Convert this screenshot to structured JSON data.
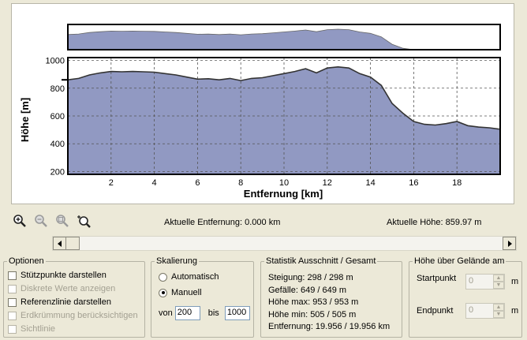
{
  "chart": {
    "ylabel": "Höhe [m]",
    "xlabel": "Entfernung [km]",
    "y_ticks": [
      "1000",
      "800",
      "600",
      "400",
      "200"
    ],
    "x_ticks": [
      "2",
      "4",
      "6",
      "8",
      "10",
      "12",
      "14",
      "16",
      "18"
    ],
    "fill_color": "#9199c2",
    "line_color": "#333333"
  },
  "chart_data": {
    "type": "area",
    "xlabel": "Entfernung [km]",
    "ylabel": "Höhe [m]",
    "xlim": [
      0,
      20
    ],
    "ylim": [
      180,
      1020
    ],
    "grid": true,
    "x": [
      0,
      0.5,
      1,
      1.5,
      2,
      2.5,
      3,
      3.5,
      4,
      4.5,
      5,
      5.5,
      6,
      6.5,
      7,
      7.5,
      8,
      8.5,
      9,
      9.5,
      10,
      10.5,
      11,
      11.5,
      12,
      12.5,
      13,
      13.5,
      14,
      14.5,
      15,
      15.5,
      16,
      16.5,
      17,
      17.5,
      18,
      18.5,
      19,
      19.5,
      19.956
    ],
    "y": [
      860,
      870,
      895,
      910,
      920,
      918,
      920,
      918,
      915,
      905,
      895,
      880,
      865,
      868,
      860,
      870,
      855,
      870,
      875,
      890,
      905,
      920,
      940,
      910,
      945,
      953,
      945,
      905,
      880,
      820,
      690,
      620,
      560,
      540,
      535,
      545,
      560,
      530,
      520,
      515,
      505
    ]
  },
  "zoom_icons": [
    "zoom-in-icon",
    "zoom-out-icon",
    "zoom-fit-icon",
    "zoom-select-icon"
  ],
  "status": {
    "distance": "Aktuelle Entfernung: 0.000 km",
    "height": "Aktuelle Höhe: 859.97 m"
  },
  "optionen": {
    "title": "Optionen",
    "items": [
      {
        "label": "Stützpunkte darstellen",
        "checked": false,
        "enabled": true
      },
      {
        "label": "Diskrete Werte anzeigen",
        "checked": false,
        "enabled": false
      },
      {
        "label": "Referenzlinie darstellen",
        "checked": false,
        "enabled": true
      },
      {
        "label": "Erdkrümmung berücksichtigen",
        "checked": false,
        "enabled": false
      },
      {
        "label": "Sichtlinie",
        "checked": false,
        "enabled": false
      }
    ]
  },
  "skalierung": {
    "title": "Skalierung",
    "auto_label": "Automatisch",
    "manual_label": "Manuell",
    "von_label": "von",
    "von_value": "200",
    "bis_label": "bis",
    "bis_value": "1000"
  },
  "statistik": {
    "title": "Statistik  Ausschnitt / Gesamt",
    "lines": [
      "Steigung: 298 / 298 m",
      "Gefälle: 649 / 649 m",
      "Höhe max: 953 / 953 m",
      "Höhe min: 505 / 505 m",
      "Entfernung: 19.956 / 19.956 km"
    ]
  },
  "hoehe": {
    "title": "Höhe über Gelände am",
    "start_label": "Startpunkt",
    "start_value": "0",
    "start_unit": "m",
    "end_label": "Endpunkt",
    "end_value": "0",
    "end_unit": "m"
  }
}
